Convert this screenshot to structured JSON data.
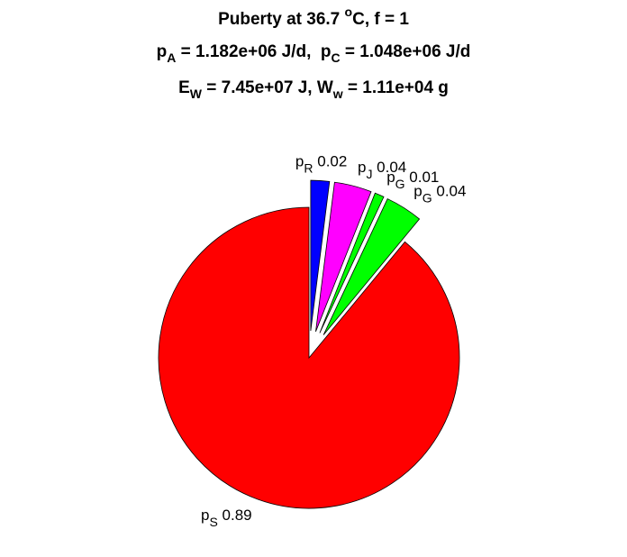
{
  "chart_data": {
    "type": "pie",
    "title_lines": [
      [
        {
          "text": "Puberty at 36.7 "
        },
        {
          "text": "o",
          "shift": "sup"
        },
        {
          "text": "C, f = 1"
        }
      ],
      [
        {
          "text": "p"
        },
        {
          "text": "A",
          "shift": "sub"
        },
        {
          "text": " = 1.182e+06 J/d,  p"
        },
        {
          "text": "C",
          "shift": "sub"
        },
        {
          "text": " = 1.048e+06 J/d"
        }
      ],
      [
        {
          "text": "E"
        },
        {
          "text": "W",
          "shift": "sub"
        },
        {
          "text": " = 7.45e+07 J, W"
        },
        {
          "text": "w",
          "shift": "sub"
        },
        {
          "text": " = 1.11e+04 g"
        }
      ]
    ],
    "categories": [
      {
        "symbol": "p",
        "subscript": "R"
      },
      {
        "symbol": "p",
        "subscript": "J"
      },
      {
        "symbol": "p",
        "subscript": "G"
      },
      {
        "symbol": "p",
        "subscript": "G"
      },
      {
        "symbol": "p",
        "subscript": "S"
      }
    ],
    "values": [
      0.02,
      0.04,
      0.01,
      0.04,
      0.89
    ],
    "colors": [
      "#0000ff",
      "#ff00ff",
      "#00ff00",
      "#00ff00",
      "#ff0000"
    ],
    "explode": [
      true,
      true,
      true,
      true,
      false
    ]
  }
}
